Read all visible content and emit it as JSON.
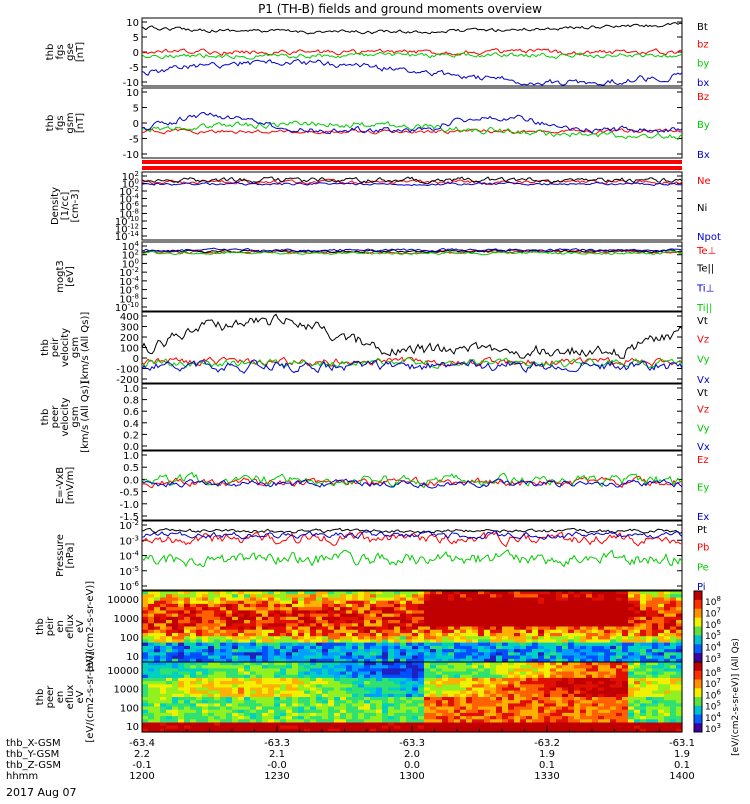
{
  "title": "P1 (TH-B) fields and ground moments overview",
  "date_label": "2017 Aug 07",
  "colors": {
    "black": "#000000",
    "red": "#ff0000",
    "green": "#00cc00",
    "blue": "#0000cc"
  },
  "chart_data": [
    {
      "type": "line",
      "id": "fgs_gse",
      "ylabel": [
        "thb",
        "fgs",
        "gse",
        "[nT]"
      ],
      "ylim": [
        -10,
        10
      ],
      "yticks": [
        "10",
        "5",
        "0",
        "-5",
        "-10"
      ],
      "series": [
        {
          "name": "Bt",
          "color": "black"
        },
        {
          "name": "bz",
          "color": "red"
        },
        {
          "name": "by",
          "color": "green"
        },
        {
          "name": "bx",
          "color": "blue"
        }
      ]
    },
    {
      "type": "line",
      "id": "fgs_gsm",
      "ylabel": [
        "thb",
        "fgs",
        "gsm",
        "[nT]"
      ],
      "ylim": [
        -15,
        15
      ],
      "yticks": [
        "10",
        "5",
        "0",
        "-5",
        "-10"
      ],
      "series": [
        {
          "name": "Bz",
          "color": "red"
        },
        {
          "name": "By",
          "color": "green"
        },
        {
          "name": "Bx",
          "color": "blue"
        }
      ]
    },
    {
      "type": "line",
      "id": "density",
      "ylabel": [
        "Density",
        "[1/cc]",
        "[cm-3]"
      ],
      "ylim": [
        "10^-14",
        "10^2"
      ],
      "yticks": [
        "10^2",
        "10^0",
        "10^-2",
        "10^-4",
        "10^-6",
        "10^-8",
        "10^-10",
        "10^-12",
        "10^-14"
      ],
      "series": [
        {
          "name": "Ne",
          "color": "red"
        },
        {
          "name": "Ni",
          "color": "black"
        },
        {
          "name": "Npot",
          "color": "blue"
        }
      ]
    },
    {
      "type": "line",
      "id": "temperature",
      "ylabel": [
        "mogt3",
        "[eV]"
      ],
      "ylim": [
        "10^-10",
        "10^4"
      ],
      "yticks": [
        "10^4",
        "10^2",
        "10^0",
        "10^-2",
        "10^-4",
        "10^-6",
        "10^-8",
        "10^-10"
      ],
      "series": [
        {
          "name": "Te⊥",
          "color": "red"
        },
        {
          "name": "Te||",
          "color": "black"
        },
        {
          "name": "Ti⊥",
          "color": "blue"
        },
        {
          "name": "Ti||",
          "color": "green"
        }
      ]
    },
    {
      "type": "line",
      "id": "peir_velocity",
      "ylabel": [
        "thb",
        "peir",
        "velocity",
        "gsm",
        "[km/s (All Qs)]"
      ],
      "ylim": [
        -200,
        400
      ],
      "yticks": [
        "400",
        "300",
        "200",
        "100",
        "0",
        "-100",
        "-200"
      ],
      "series": [
        {
          "name": "Vt",
          "color": "black"
        },
        {
          "name": "Vz",
          "color": "red"
        },
        {
          "name": "Vy",
          "color": "green"
        },
        {
          "name": "Vx",
          "color": "blue"
        }
      ]
    },
    {
      "type": "line",
      "id": "peer_velocity",
      "ylabel": [
        "thb",
        "peer",
        "velocity",
        "gsm",
        "[km/s (All Qs)]"
      ],
      "ylim": [
        0,
        1
      ],
      "yticks": [
        "1.0",
        "0.8",
        "0.6",
        "0.4",
        "0.2",
        "0.0"
      ],
      "series": [
        {
          "name": "Vt",
          "color": "black"
        },
        {
          "name": "Vz",
          "color": "red"
        },
        {
          "name": "Vy",
          "color": "green"
        },
        {
          "name": "Vx",
          "color": "blue"
        }
      ]
    },
    {
      "type": "line",
      "id": "efield",
      "ylabel": [
        "E=-VxB",
        "[mV/m]"
      ],
      "ylim": [
        -1.5,
        1.0
      ],
      "yticks": [
        "1.0",
        "0.5",
        "0.0",
        "-0.5",
        "-1.0",
        "-1.5"
      ],
      "series": [
        {
          "name": "Ez",
          "color": "red"
        },
        {
          "name": "Ey",
          "color": "green"
        },
        {
          "name": "Ex",
          "color": "blue"
        }
      ]
    },
    {
      "type": "line",
      "id": "pressure",
      "ylabel": [
        "Pressure",
        "[nPa]"
      ],
      "ylim": [
        "10^-6",
        "10^-2"
      ],
      "yticks": [
        "10^-2",
        "10^-3",
        "10^-4",
        "10^-5",
        "10^-6"
      ],
      "series": [
        {
          "name": "Pt",
          "color": "black"
        },
        {
          "name": "Pb",
          "color": "red"
        },
        {
          "name": "Pe",
          "color": "green"
        },
        {
          "name": "Pi",
          "color": "blue"
        }
      ]
    },
    {
      "type": "heatmap",
      "id": "peir_eflux",
      "ylabel": [
        "thb",
        "peir",
        "en",
        "eflux",
        "eV",
        "[eV/(cm2-s-sr-eV)]"
      ],
      "ylim": [
        10,
        10000
      ],
      "yticks": [
        "10000",
        "1000",
        "100",
        "10"
      ],
      "colorbar_ticks": [
        "10^8",
        "10^7",
        "10^6",
        "10^5",
        "10^4",
        "10^3"
      ]
    },
    {
      "type": "heatmap",
      "id": "peer_eflux",
      "ylabel": [
        "thb",
        "peer",
        "en",
        "eflux",
        "eV",
        "[eV/(cm2-s-sr-eV)]"
      ],
      "ylim": [
        10,
        10000
      ],
      "yticks": [
        "10000",
        "1000",
        "100",
        "10"
      ],
      "colorbar_ticks": [
        "10^8",
        "10^7",
        "10^6",
        "10^5",
        "10^4",
        "10^3"
      ]
    }
  ],
  "colorbar_label_a": "[eV/(cm2-s-sr-eV)]",
  "colorbar_label_b": "(All Qs)",
  "xaxis": {
    "row_labels": [
      "thb_X-GSM",
      "thb_Y-GSM",
      "thb_Z-GSM",
      "hhmm"
    ],
    "columns": [
      [
        "-63.4",
        "2.2",
        "-0.1",
        "1200"
      ],
      [
        "-63.3",
        "2.1",
        "-0.0",
        "1230"
      ],
      [
        "-63.3",
        "2.0",
        "0.0",
        "1300"
      ],
      [
        "-63.2",
        "1.9",
        "0.1",
        "1330"
      ],
      [
        "-63.1",
        "1.9",
        "0.1",
        "1400"
      ]
    ]
  }
}
